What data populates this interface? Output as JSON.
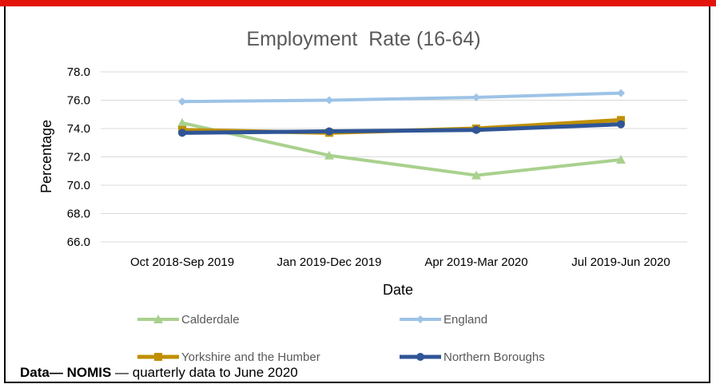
{
  "chart_data": {
    "type": "line",
    "title": "Employment  Rate (16-64)",
    "xlabel": "Date",
    "ylabel": "Percentage",
    "ylim": [
      66.0,
      78.0
    ],
    "yticks": [
      "66.0",
      "68.0",
      "70.0",
      "72.0",
      "74.0",
      "76.0",
      "78.0"
    ],
    "categories": [
      "Oct 2018-Sep 2019",
      "Jan 2019-Dec 2019",
      "Apr 2019-Mar 2020",
      "Jul 2019-Jun 2020"
    ],
    "grid": true,
    "legend_position": "bottom",
    "series": [
      {
        "name": "Calderdale",
        "color": "#a9d18e",
        "marker": "triangle",
        "values": [
          74.4,
          72.1,
          70.7,
          71.8
        ]
      },
      {
        "name": "England",
        "color": "#9dc3e6",
        "marker": "diamond",
        "values": [
          75.9,
          76.0,
          76.2,
          76.5
        ]
      },
      {
        "name": "Yorkshire and the Humber",
        "color": "#bf9000",
        "marker": "square",
        "values": [
          73.9,
          73.7,
          74.0,
          74.6
        ]
      },
      {
        "name": "Northern Boroughs",
        "color": "#2f5597",
        "marker": "circle",
        "values": [
          73.7,
          73.8,
          73.9,
          74.3
        ]
      }
    ]
  },
  "caption": {
    "source_label": "Data",
    "dash1": "— ",
    "source_name": "NOMIS",
    "rest": " — quarterly data to June 2020"
  }
}
